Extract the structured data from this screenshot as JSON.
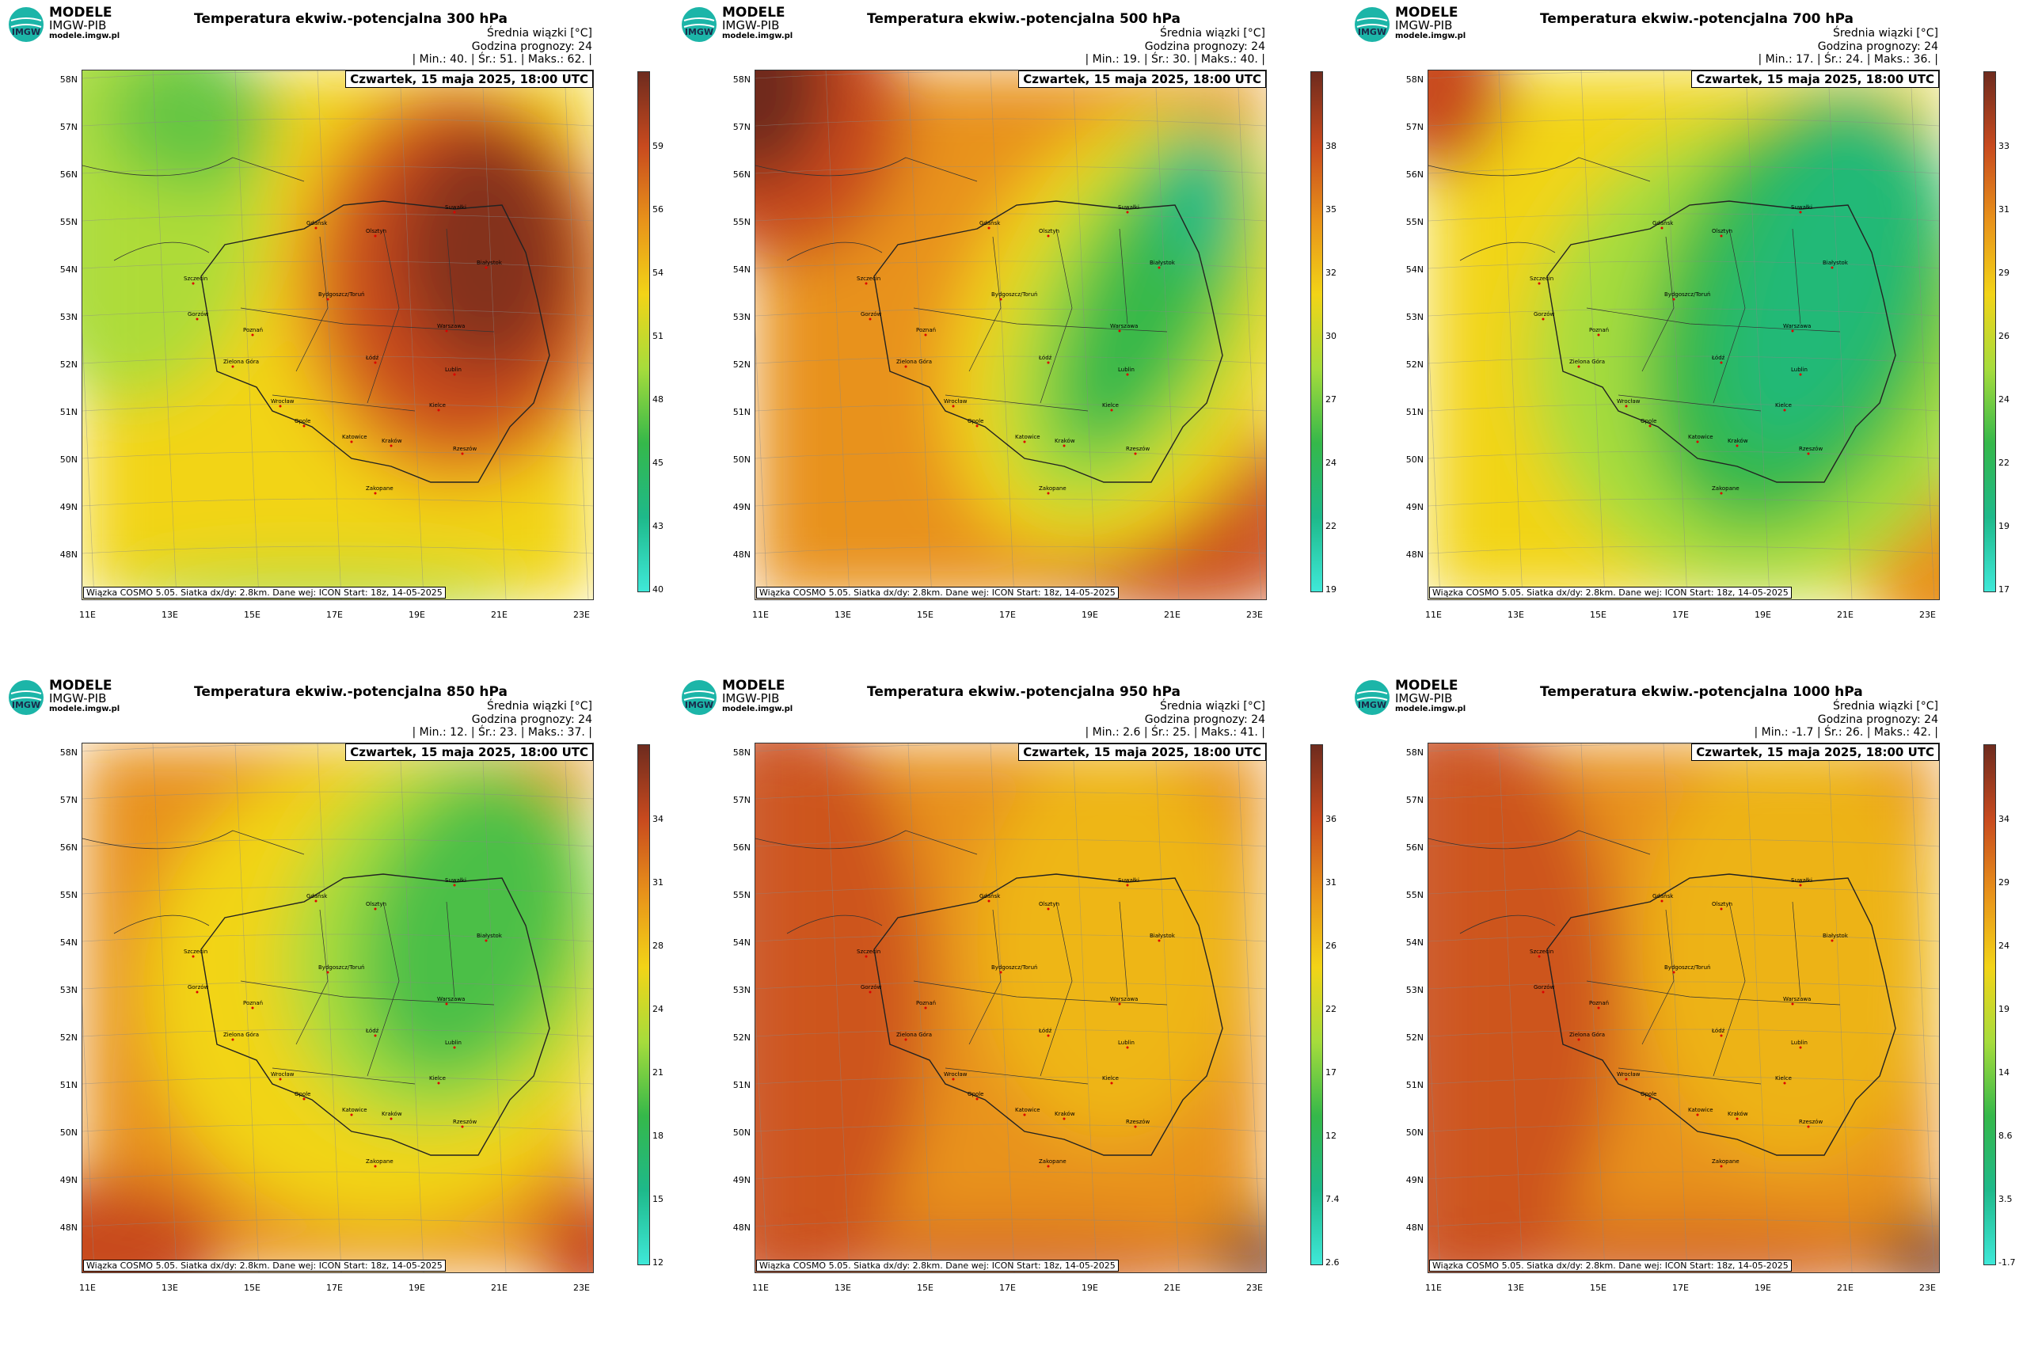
{
  "logo": {
    "line1": "MODELE",
    "line2": "IMGW-PIB",
    "line3": "modele.imgw.pl",
    "circle_text": "IMGW"
  },
  "common": {
    "avg_label": "Średnia wiązki [°C]",
    "forecast_label": "Godzina prognozy: 24",
    "date": "Czwartek, 15 maja 2025, 18:00 UTC",
    "info": "Wiązka COSMO 5.05. Siatka dx/dy: 2.8km. Dane wej: ICON Start: 18z, 14-05-2025",
    "lat_labels": [
      "58N",
      "57N",
      "56N",
      "55N",
      "54N",
      "53N",
      "52N",
      "51N",
      "50N",
      "49N",
      "48N"
    ],
    "lon_labels": [
      "11E",
      "13E",
      "15E",
      "17E",
      "19E",
      "21E",
      "23E"
    ],
    "cities": [
      "Gdańsk",
      "Olsztyn",
      "Suwałki",
      "Szczecin",
      "Białystok",
      "Bydgoszcz/Toruń",
      "Gorzów",
      "Warszawa",
      "Poznań",
      "Łódź",
      "Zielona Góra",
      "Lublin",
      "Wrocław",
      "Kielce",
      "Opole",
      "Katowice",
      "Kraków",
      "Rzeszów",
      "Zakopane"
    ]
  },
  "panels": [
    {
      "title": "Temperatura ekwiw.-potencjalna 300 hPa",
      "stats": "| Min.:  40. | Śr.:  51. | Maks.:  62. |",
      "colorbar_ticks": [
        "59",
        "56",
        "54",
        "51",
        "48",
        "45",
        "43",
        "40"
      ]
    },
    {
      "title": "Temperatura ekwiw.-potencjalna 500 hPa",
      "stats": "| Min.:  19. | Śr.:  30. | Maks.:  40. |",
      "colorbar_ticks": [
        "38",
        "35",
        "32",
        "30",
        "27",
        "24",
        "22",
        "19"
      ]
    },
    {
      "title": "Temperatura ekwiw.-potencjalna 700 hPa",
      "stats": "| Min.:  17. | Śr.:  24. | Maks.:  36. |",
      "colorbar_ticks": [
        "33",
        "31",
        "29",
        "26",
        "24",
        "22",
        "19",
        "17"
      ]
    },
    {
      "title": "Temperatura ekwiw.-potencjalna 850 hPa",
      "stats": "| Min.:  12. | Śr.:  23. | Maks.:  37. |",
      "colorbar_ticks": [
        "34",
        "31",
        "28",
        "24",
        "21",
        "18",
        "15",
        "12"
      ]
    },
    {
      "title": "Temperatura ekwiw.-potencjalna 950 hPa",
      "stats": "| Min.:  2.6 | Śr.:  25. | Maks.:  41. |",
      "colorbar_ticks": [
        "36",
        "31",
        "26",
        "22",
        "17",
        "12",
        "7.4",
        "2.6"
      ]
    },
    {
      "title": "Temperatura ekwiw.-potencjalna 1000 hPa",
      "stats": "| Min.:  -1.7 | Śr.:  26. | Maks.:  42. |",
      "colorbar_ticks": [
        "34",
        "29",
        "24",
        "19",
        "14",
        "8.6",
        "3.5",
        "-1.7"
      ]
    }
  ],
  "colors": {
    "dark": "#6e2b1e",
    "red": "#c84a1e",
    "orange": "#e8921a",
    "yellow": "#f2d417",
    "lightgreen": "#a6dc3c",
    "green": "#35b84a",
    "teal": "#1eb98a",
    "cyan": "#3fe8d8"
  }
}
